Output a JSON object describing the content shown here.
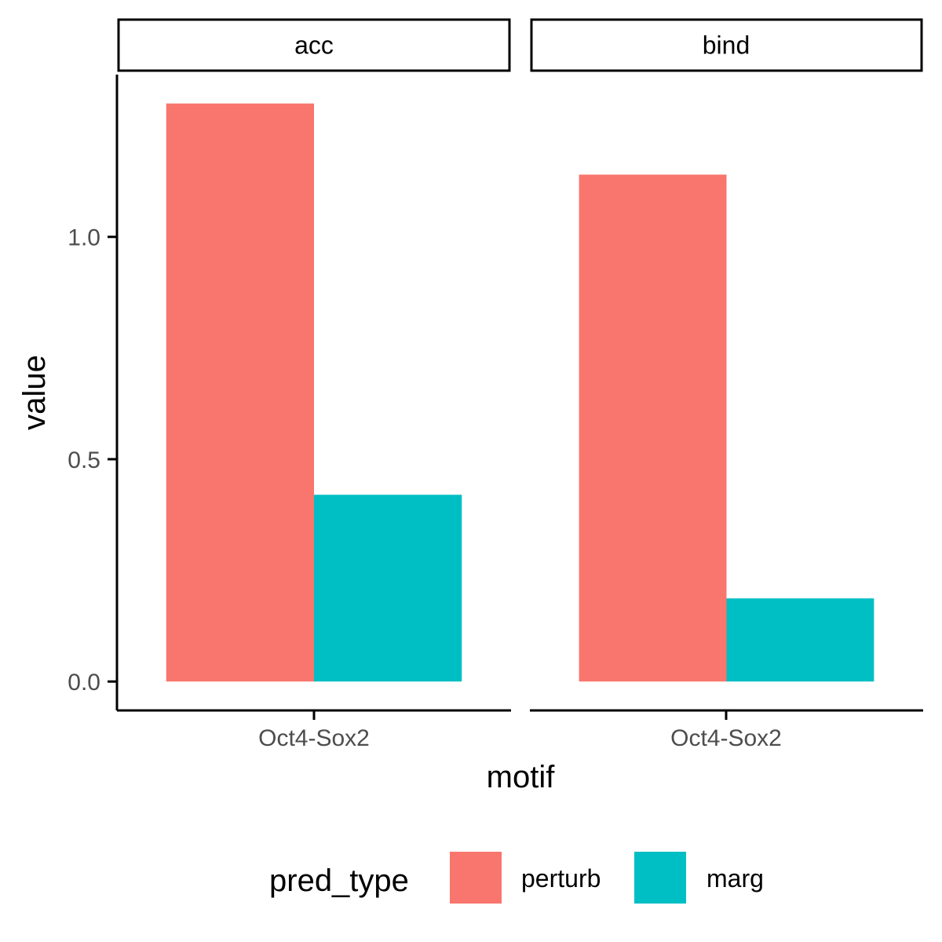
{
  "chart_data": {
    "type": "bar",
    "facet_var": "",
    "facets": [
      "acc",
      "bind"
    ],
    "categories": [
      "Oct4-Sox2"
    ],
    "series": [
      {
        "name": "perturb",
        "color": "#F8766D",
        "values": {
          "acc": [
            1.3
          ],
          "bind": [
            1.14
          ]
        }
      },
      {
        "name": "marg",
        "color": "#00BFC4",
        "values": {
          "acc": [
            0.42
          ],
          "bind": [
            0.187
          ]
        }
      }
    ],
    "xlabel": "motif",
    "ylabel": "value",
    "yticks": [
      0.0,
      0.5,
      1.0
    ],
    "ytick_labels": [
      "0.0",
      "0.5",
      "1.0"
    ],
    "ylim": [
      -0.065,
      1.365
    ],
    "grid": false,
    "legend": {
      "title": "pred_type",
      "position": "bottom",
      "entries": [
        "perturb",
        "marg"
      ]
    }
  }
}
